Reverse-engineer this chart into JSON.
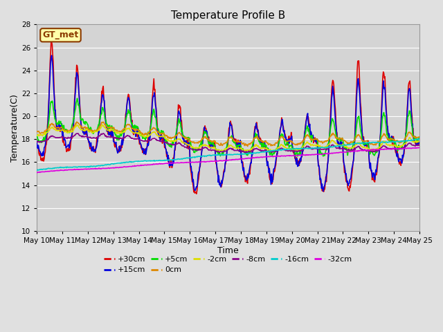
{
  "title": "Temperature Profile B",
  "xlabel": "Time",
  "ylabel": "Temperature(C)",
  "ylim": [
    10,
    28
  ],
  "yticks": [
    10,
    12,
    14,
    16,
    18,
    20,
    22,
    24,
    26,
    28
  ],
  "x_labels": [
    "May 10",
    "May 11",
    "May 12",
    "May 13",
    "May 14",
    "May 15",
    "May 16",
    "May 17",
    "May 18",
    "May 19",
    "May 20",
    "May 21",
    "May 22",
    "May 23",
    "May 24",
    "May 25"
  ],
  "fig_bg": "#e0e0e0",
  "plot_bg": "#d4d4d4",
  "legend_label": "GT_met",
  "series": [
    {
      "label": "+30cm",
      "color": "#dd0000",
      "lw": 1.2
    },
    {
      "label": "+15cm",
      "color": "#0000dd",
      "lw": 1.2
    },
    {
      "label": "+5cm",
      "color": "#00dd00",
      "lw": 1.2
    },
    {
      "label": "0cm",
      "color": "#dd8800",
      "lw": 1.2
    },
    {
      "label": "-2cm",
      "color": "#dddd00",
      "lw": 1.2
    },
    {
      "label": "-8cm",
      "color": "#880088",
      "lw": 1.2
    },
    {
      "label": "-16cm",
      "color": "#00cccc",
      "lw": 1.2
    },
    {
      "label": "-32cm",
      "color": "#dd00dd",
      "lw": 1.2
    }
  ]
}
